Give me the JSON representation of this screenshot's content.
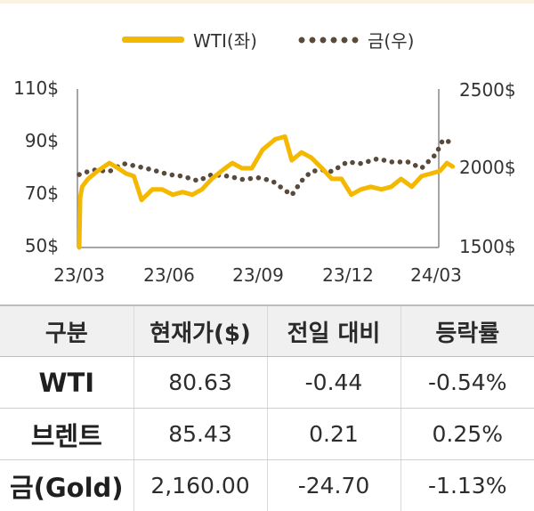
{
  "legend": {
    "wti": {
      "label": "WTI(좌)",
      "color": "#f5b800"
    },
    "gold": {
      "label": "금(우)",
      "color": "#5a4a3c"
    }
  },
  "chart_data": {
    "type": "line",
    "left_axis": {
      "ylim": [
        50,
        110
      ],
      "ticks": [
        "110$",
        "90$",
        "70$",
        "50$"
      ]
    },
    "right_axis": {
      "ylim": [
        1500,
        2500
      ],
      "ticks": [
        "2500$",
        "2000$",
        "1500$"
      ]
    },
    "x_ticks": [
      "23/03",
      "23/06",
      "23/09",
      "23/12",
      "24/03"
    ],
    "series": [
      {
        "name": "WTI(좌)",
        "axis": "left",
        "style": "solid",
        "color": "#f5b800",
        "points": [
          {
            "x": "2023-03-01",
            "y": 50
          },
          {
            "x": "2023-03-02",
            "y": 69
          },
          {
            "x": "2023-03-04",
            "y": 73
          },
          {
            "x": "2023-03-10",
            "y": 76
          },
          {
            "x": "2023-03-20",
            "y": 79
          },
          {
            "x": "2023-04-01",
            "y": 82
          },
          {
            "x": "2023-04-10",
            "y": 80
          },
          {
            "x": "2023-04-18",
            "y": 78
          },
          {
            "x": "2023-04-26",
            "y": 77
          },
          {
            "x": "2023-05-04",
            "y": 68
          },
          {
            "x": "2023-05-15",
            "y": 72
          },
          {
            "x": "2023-05-25",
            "y": 72
          },
          {
            "x": "2023-06-05",
            "y": 70
          },
          {
            "x": "2023-06-15",
            "y": 71
          },
          {
            "x": "2023-06-25",
            "y": 70
          },
          {
            "x": "2023-07-05",
            "y": 72
          },
          {
            "x": "2023-07-15",
            "y": 76
          },
          {
            "x": "2023-07-25",
            "y": 79
          },
          {
            "x": "2023-08-05",
            "y": 82
          },
          {
            "x": "2023-08-15",
            "y": 80
          },
          {
            "x": "2023-08-25",
            "y": 80
          },
          {
            "x": "2023-09-05",
            "y": 87
          },
          {
            "x": "2023-09-18",
            "y": 91
          },
          {
            "x": "2023-09-28",
            "y": 92
          },
          {
            "x": "2023-10-05",
            "y": 83
          },
          {
            "x": "2023-10-15",
            "y": 86
          },
          {
            "x": "2023-10-25",
            "y": 84
          },
          {
            "x": "2023-11-05",
            "y": 80
          },
          {
            "x": "2023-11-15",
            "y": 76
          },
          {
            "x": "2023-11-25",
            "y": 76
          },
          {
            "x": "2023-12-05",
            "y": 70
          },
          {
            "x": "2023-12-15",
            "y": 72
          },
          {
            "x": "2023-12-25",
            "y": 73
          },
          {
            "x": "2024-01-05",
            "y": 72
          },
          {
            "x": "2024-01-15",
            "y": 73
          },
          {
            "x": "2024-01-25",
            "y": 76
          },
          {
            "x": "2024-02-05",
            "y": 73
          },
          {
            "x": "2024-02-15",
            "y": 77
          },
          {
            "x": "2024-02-25",
            "y": 78
          },
          {
            "x": "2024-03-05",
            "y": 79
          },
          {
            "x": "2024-03-12",
            "y": 82
          },
          {
            "x": "2024-03-18",
            "y": 80.63
          }
        ]
      },
      {
        "name": "금(우)",
        "axis": "right",
        "style": "dotted",
        "color": "#5a4a3c",
        "points": [
          {
            "x": "2023-03-01",
            "y": 1960
          },
          {
            "x": "2023-03-15",
            "y": 1990
          },
          {
            "x": "2023-04-01",
            "y": 1980
          },
          {
            "x": "2023-04-15",
            "y": 2030
          },
          {
            "x": "2023-05-01",
            "y": 2010
          },
          {
            "x": "2023-05-15",
            "y": 1990
          },
          {
            "x": "2023-06-01",
            "y": 1960
          },
          {
            "x": "2023-06-15",
            "y": 1950
          },
          {
            "x": "2023-07-01",
            "y": 1920
          },
          {
            "x": "2023-07-15",
            "y": 1960
          },
          {
            "x": "2023-08-01",
            "y": 1950
          },
          {
            "x": "2023-08-15",
            "y": 1930
          },
          {
            "x": "2023-09-01",
            "y": 1940
          },
          {
            "x": "2023-09-15",
            "y": 1920
          },
          {
            "x": "2023-10-05",
            "y": 1830
          },
          {
            "x": "2023-10-15",
            "y": 1920
          },
          {
            "x": "2023-10-25",
            "y": 1980
          },
          {
            "x": "2023-11-05",
            "y": 1990
          },
          {
            "x": "2023-11-15",
            "y": 1980
          },
          {
            "x": "2023-12-01",
            "y": 2040
          },
          {
            "x": "2023-12-15",
            "y": 2030
          },
          {
            "x": "2024-01-01",
            "y": 2060
          },
          {
            "x": "2024-01-15",
            "y": 2040
          },
          {
            "x": "2024-02-01",
            "y": 2040
          },
          {
            "x": "2024-02-15",
            "y": 2000
          },
          {
            "x": "2024-03-01",
            "y": 2090
          },
          {
            "x": "2024-03-08",
            "y": 2180
          },
          {
            "x": "2024-03-18",
            "y": 2160
          }
        ]
      }
    ]
  },
  "table": {
    "headers": [
      "구분",
      "현재가($)",
      "전일 대비",
      "등락률"
    ],
    "rows": [
      [
        "WTI",
        "80.63",
        "-0.44",
        "-0.54%"
      ],
      [
        "브렌트",
        "85.43",
        "0.21",
        "0.25%"
      ],
      [
        "금(Gold)",
        "2,160.00",
        "-24.70",
        "-1.13%"
      ]
    ]
  }
}
